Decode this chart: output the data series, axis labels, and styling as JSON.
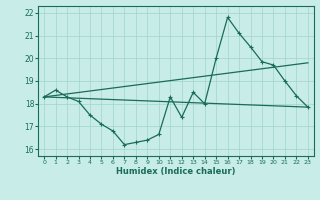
{
  "xlabel": "Humidex (Indice chaleur)",
  "xlim": [
    -0.5,
    23.5
  ],
  "ylim": [
    15.7,
    22.3
  ],
  "yticks": [
    16,
    17,
    18,
    19,
    20,
    21,
    22
  ],
  "xticks": [
    0,
    1,
    2,
    3,
    4,
    5,
    6,
    7,
    8,
    9,
    10,
    11,
    12,
    13,
    14,
    15,
    16,
    17,
    18,
    19,
    20,
    21,
    22,
    23
  ],
  "bg_color": "#c8ede8",
  "grid_color": "#a0d4cc",
  "line_color": "#1a6b5a",
  "line1_x": [
    0,
    1,
    2,
    3,
    4,
    5,
    6,
    7,
    8,
    9,
    10,
    11,
    12,
    13,
    14,
    15,
    16,
    17,
    18,
    19,
    20,
    21,
    22,
    23
  ],
  "line1_y": [
    18.3,
    18.6,
    18.3,
    18.1,
    17.5,
    17.1,
    16.8,
    16.2,
    16.3,
    16.4,
    16.65,
    18.3,
    17.4,
    18.5,
    18.0,
    20.0,
    21.8,
    21.1,
    20.5,
    19.85,
    19.7,
    19.0,
    18.35,
    17.85
  ],
  "line2_x": [
    0,
    23
  ],
  "line2_y": [
    18.3,
    17.85
  ],
  "line3_x": [
    0,
    23
  ],
  "line3_y": [
    18.3,
    19.8
  ]
}
